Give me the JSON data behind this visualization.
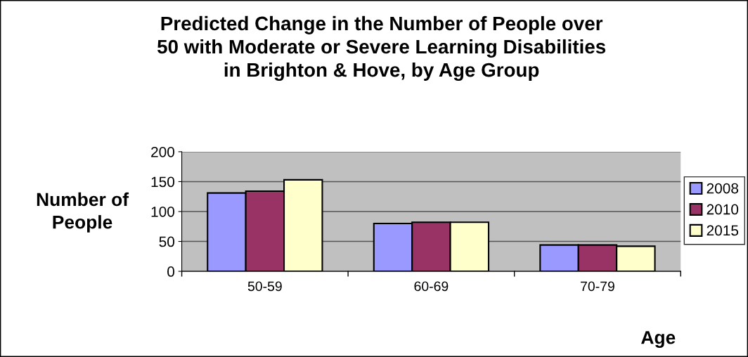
{
  "chart_data": {
    "type": "bar",
    "title": "Predicted Change in the Number of People over\n50 with Moderate or Severe Learning Disabilities\nin Brighton & Hove, by Age Group",
    "xlabel": "Age",
    "ylabel": "Number of\nPeople",
    "categories": [
      "50-59",
      "60-69",
      "70-79"
    ],
    "series": [
      {
        "name": "2008",
        "color": "#9999ff",
        "values": [
          131,
          80,
          44
        ]
      },
      {
        "name": "2010",
        "color": "#993366",
        "values": [
          134,
          82,
          44
        ]
      },
      {
        "name": "2015",
        "color": "#ffffcc",
        "values": [
          153,
          82,
          42
        ]
      }
    ],
    "ylim": [
      0,
      200
    ],
    "yticks": [
      0,
      50,
      100,
      150,
      200
    ],
    "grid": "y",
    "legend": "right"
  }
}
